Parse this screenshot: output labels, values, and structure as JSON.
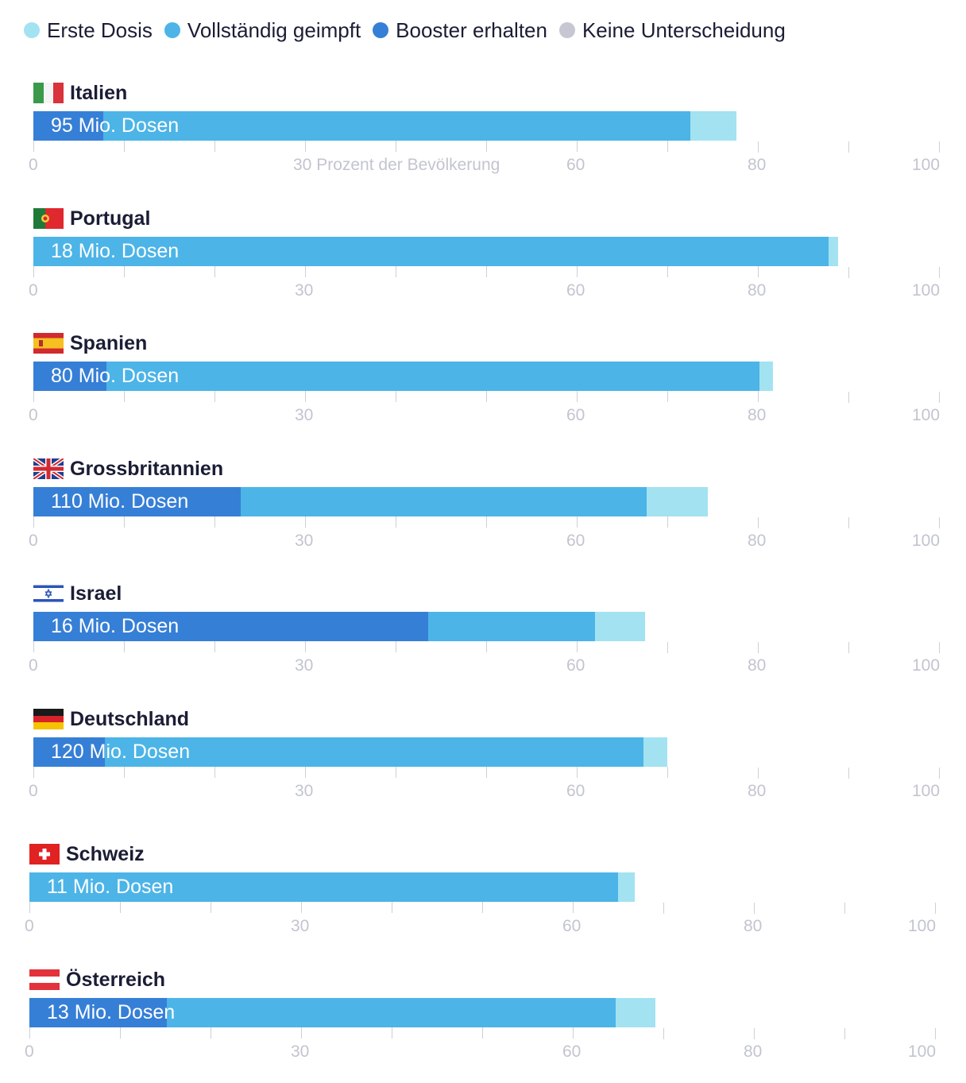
{
  "legend": [
    {
      "label": "Erste Dosis",
      "color": "#a3e2f1"
    },
    {
      "label": "Vollständig geimpft",
      "color": "#4cb4e7"
    },
    {
      "label": "Booster erhalten",
      "color": "#367fd6"
    },
    {
      "label": "Keine Unterscheidung",
      "color": "#c6c7d2"
    }
  ],
  "colors": {
    "erste_dosis": "#a3e2f1",
    "vollstaendig": "#4cb4e7",
    "booster": "#367fd6",
    "tick": "#cdd0d8",
    "tick_label": "#c2c5cf"
  },
  "chart_data": {
    "type": "bar",
    "orientation": "horizontal",
    "stacked": true,
    "xlim": [
      0,
      100
    ],
    "ticks": [
      0,
      10,
      20,
      30,
      40,
      50,
      60,
      70,
      80,
      90,
      100
    ],
    "tick_labels": [
      "0",
      "30",
      "60",
      "80",
      "100"
    ],
    "first_axis_label": "30 Prozent der Bevölkerung",
    "series_names": [
      "Booster erhalten",
      "Vollständig geimpft",
      "Erste Dosis"
    ],
    "countries": [
      {
        "name": "Italien",
        "flag": "italy-flag-icon",
        "label": "95 Mio. Dosen",
        "booster": 7.7,
        "vollstaendig": 72.5,
        "erste_dosis": 77.6
      },
      {
        "name": "Portugal",
        "flag": "portugal-flag-icon",
        "label": "18 Mio. Dosen",
        "booster": 0,
        "vollstaendig": 87.8,
        "erste_dosis": 88.9
      },
      {
        "name": "Spanien",
        "flag": "spain-flag-icon",
        "label": "80 Mio. Dosen",
        "booster": 8.1,
        "vollstaendig": 80.2,
        "erste_dosis": 81.7
      },
      {
        "name": "Grossbritannien",
        "flag": "uk-flag-icon",
        "label": "110 Mio. Dosen",
        "booster": 22.9,
        "vollstaendig": 67.7,
        "erste_dosis": 74.5
      },
      {
        "name": "Israel",
        "flag": "israel-flag-icon",
        "label": "16 Mio. Dosen",
        "booster": 43.6,
        "vollstaendig": 62.0,
        "erste_dosis": 67.5
      },
      {
        "name": "Deutschland",
        "flag": "germany-flag-icon",
        "label": "120 Mio. Dosen",
        "booster": 7.9,
        "vollstaendig": 67.4,
        "erste_dosis": 70.0
      },
      {
        "name": "Schweiz",
        "flag": "switzerland-flag-icon",
        "label": "11 Mio. Dosen",
        "booster": 0,
        "vollstaendig": 65.0,
        "erste_dosis": 66.8
      },
      {
        "name": "Österreich",
        "flag": "austria-flag-icon",
        "label": "13 Mio. Dosen",
        "booster": 15.2,
        "vollstaendig": 64.7,
        "erste_dosis": 69.1
      }
    ]
  }
}
